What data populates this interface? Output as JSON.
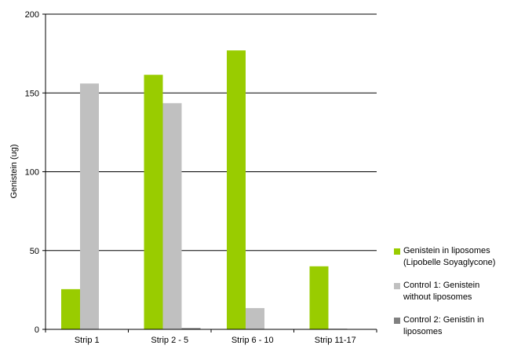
{
  "chart_data": {
    "type": "bar",
    "title": "",
    "xlabel": "",
    "ylabel": "Genistein (ug)",
    "ylim": [
      0,
      200
    ],
    "yticks": [
      0,
      50,
      100,
      150,
      200
    ],
    "grid": true,
    "legend_position": "right",
    "categories": [
      "Strip 1",
      "Strip 2 - 5",
      "Strip 6 - 10",
      "Strip 11-17"
    ],
    "series": [
      {
        "name": "Genistein in liposomes\n(Lipobelle Soyaglycone)",
        "color": "#99cc00",
        "values": [
          25.5,
          161.5,
          177,
          40
        ]
      },
      {
        "name": "Control 1: Genistein\nwithout liposomes",
        "color": "#c0c0c0",
        "values": [
          156,
          143.5,
          13.5,
          0.5
        ]
      },
      {
        "name": "Control 2: Genistin in\nliposomes",
        "color": "#808080",
        "values": [
          0,
          0.8,
          0,
          0
        ]
      }
    ]
  }
}
